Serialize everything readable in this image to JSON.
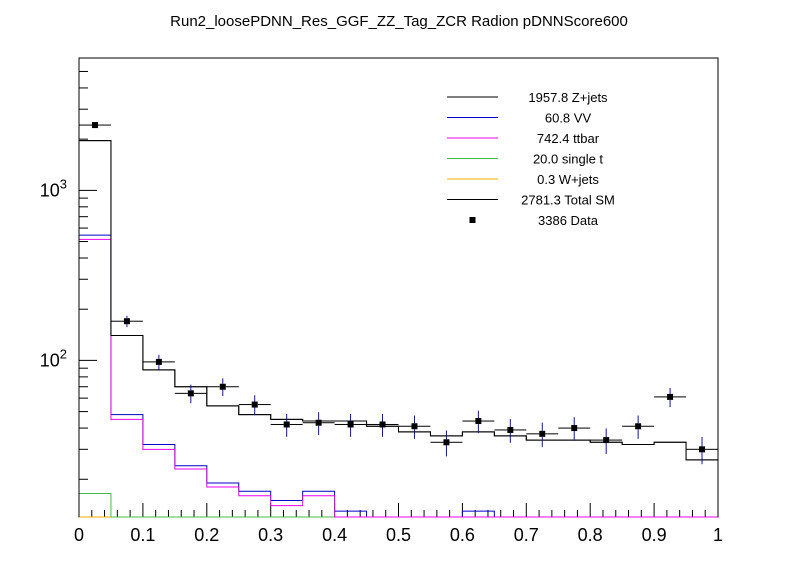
{
  "chart_data": {
    "type": "histogram",
    "title": "Run2_loosePDNN_Res_GGF_ZZ_Tag_ZCR Radion  pDNNScore600",
    "xlabel": "",
    "ylabel": "",
    "xlim": [
      0,
      1
    ],
    "ylim": [
      12,
      6000
    ],
    "yscale": "log",
    "bin_edges": [
      0,
      0.05,
      0.1,
      0.15,
      0.2,
      0.25,
      0.3,
      0.35,
      0.4,
      0.45,
      0.5,
      0.55,
      0.6,
      0.65,
      0.7,
      0.75,
      0.8,
      0.85,
      0.9,
      0.95,
      1.0
    ],
    "x_ticks": [
      {
        "v": 0,
        "label": "0"
      },
      {
        "v": 0.1,
        "label": "0.1"
      },
      {
        "v": 0.2,
        "label": "0.2"
      },
      {
        "v": 0.3,
        "label": "0.3"
      },
      {
        "v": 0.4,
        "label": "0.4"
      },
      {
        "v": 0.5,
        "label": "0.5"
      },
      {
        "v": 0.6,
        "label": "0.6"
      },
      {
        "v": 0.7,
        "label": "0.7"
      },
      {
        "v": 0.8,
        "label": "0.8"
      },
      {
        "v": 0.9,
        "label": "0.9"
      },
      {
        "v": 1,
        "label": "1"
      }
    ],
    "y_ticks": [
      {
        "v": 100,
        "base": "10",
        "exp": "2"
      },
      {
        "v": 1000,
        "base": "10",
        "exp": "3"
      }
    ],
    "series": [
      {
        "name": "Z+jets",
        "legend_value": "1957.8",
        "legend_label": "1957.8 Z+jets",
        "color": "#000000",
        "values": [
          1960,
          140,
          88,
          70,
          54,
          48,
          45,
          44,
          44,
          41,
          38,
          36,
          38,
          36,
          34,
          34,
          33,
          32,
          33,
          26
        ]
      },
      {
        "name": "VV",
        "legend_value": "60.8",
        "legend_label": "60.8 VV",
        "color": "#0000cc",
        "values": [
          545,
          48,
          32,
          24,
          19,
          17,
          15,
          17,
          13,
          12,
          11,
          11,
          13,
          11,
          11,
          11,
          11,
          11,
          11,
          11
        ]
      },
      {
        "name": "ttbar",
        "legend_value": "742.4",
        "legend_label": "742.4 ttbar",
        "color": "#ee00ee",
        "values": [
          515,
          45,
          30,
          23,
          18,
          16,
          14,
          16,
          12,
          11.5,
          10,
          10,
          10,
          10,
          10,
          10,
          10,
          10,
          10,
          10
        ]
      },
      {
        "name": "single t",
        "legend_value": "20.0",
        "legend_label": "20.0 single t",
        "color": "#44bb44",
        "values": [
          16.5,
          5,
          5,
          5,
          5,
          5,
          5,
          5,
          5,
          5,
          5,
          5,
          5,
          5,
          5,
          5,
          5,
          5,
          5,
          5
        ]
      },
      {
        "name": "W+jets",
        "legend_value": "0.3",
        "legend_label": "0.3 W+jets",
        "color": "#ffaa00",
        "values": [
          5,
          5,
          5,
          5,
          5,
          5,
          5,
          5,
          5,
          5,
          5,
          5,
          5,
          5,
          5,
          5,
          5,
          5,
          5,
          5
        ]
      },
      {
        "name": "Total SM",
        "legend_value": "2781.3",
        "legend_label": "2781.3 Total SM",
        "color": "#000000",
        "values": [
          1960,
          140,
          88,
          70,
          54,
          48,
          45,
          44,
          44,
          41,
          38,
          36,
          38,
          36,
          34,
          34,
          33,
          32,
          33,
          26
        ]
      }
    ],
    "data": {
      "name": "Data",
      "legend_value": "3386",
      "legend_label": "3386 Data",
      "color": "#000000",
      "x": [
        0.025,
        0.075,
        0.125,
        0.175,
        0.225,
        0.275,
        0.325,
        0.375,
        0.425,
        0.475,
        0.525,
        0.575,
        0.625,
        0.675,
        0.725,
        0.775,
        0.825,
        0.875,
        0.925,
        0.975
      ],
      "y": [
        2420,
        170,
        98,
        64,
        70,
        55,
        42,
        43,
        42,
        42,
        41,
        33,
        44,
        39,
        37,
        40,
        34,
        41,
        61,
        30
      ]
    },
    "legend_position": "top-right"
  }
}
